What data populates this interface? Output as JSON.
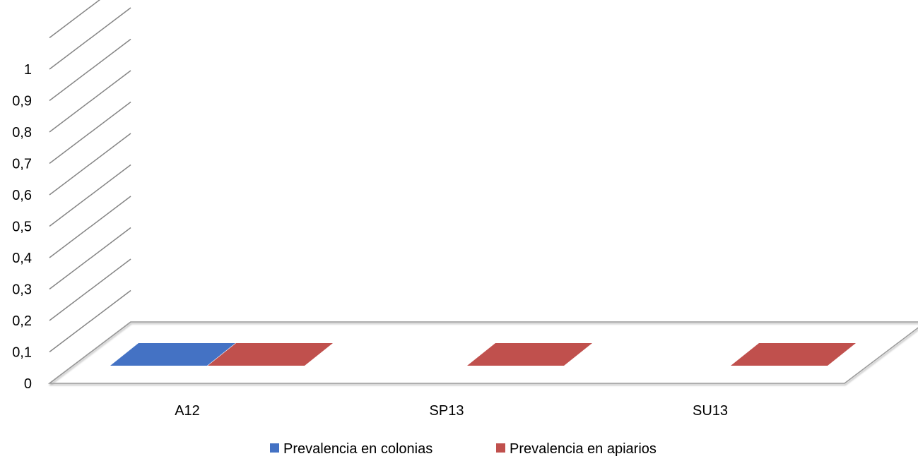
{
  "chart_data": {
    "type": "bar",
    "title": "",
    "xlabel": "",
    "ylabel": "",
    "categories": [
      "A12",
      "SP13",
      "SU13"
    ],
    "series": [
      {
        "name": "Prevalencia en colonias",
        "values": [
          0,
          0,
          0
        ],
        "color": "#4472c4"
      },
      {
        "name": "Prevalencia en apiarios",
        "values": [
          0,
          0,
          0
        ],
        "color": "#c0504d"
      }
    ],
    "present": [
      [
        true,
        false,
        false
      ],
      [
        true,
        true,
        true
      ]
    ],
    "ylim": [
      0,
      1.1
    ],
    "y_ticks": [
      "0",
      "0,1",
      "0,2",
      "0,3",
      "0,4",
      "0,5",
      "0,6",
      "0,7",
      "0,8",
      "0,9",
      "1"
    ],
    "grid": true,
    "legend": "bottom",
    "style": "3d-clustered-column"
  }
}
